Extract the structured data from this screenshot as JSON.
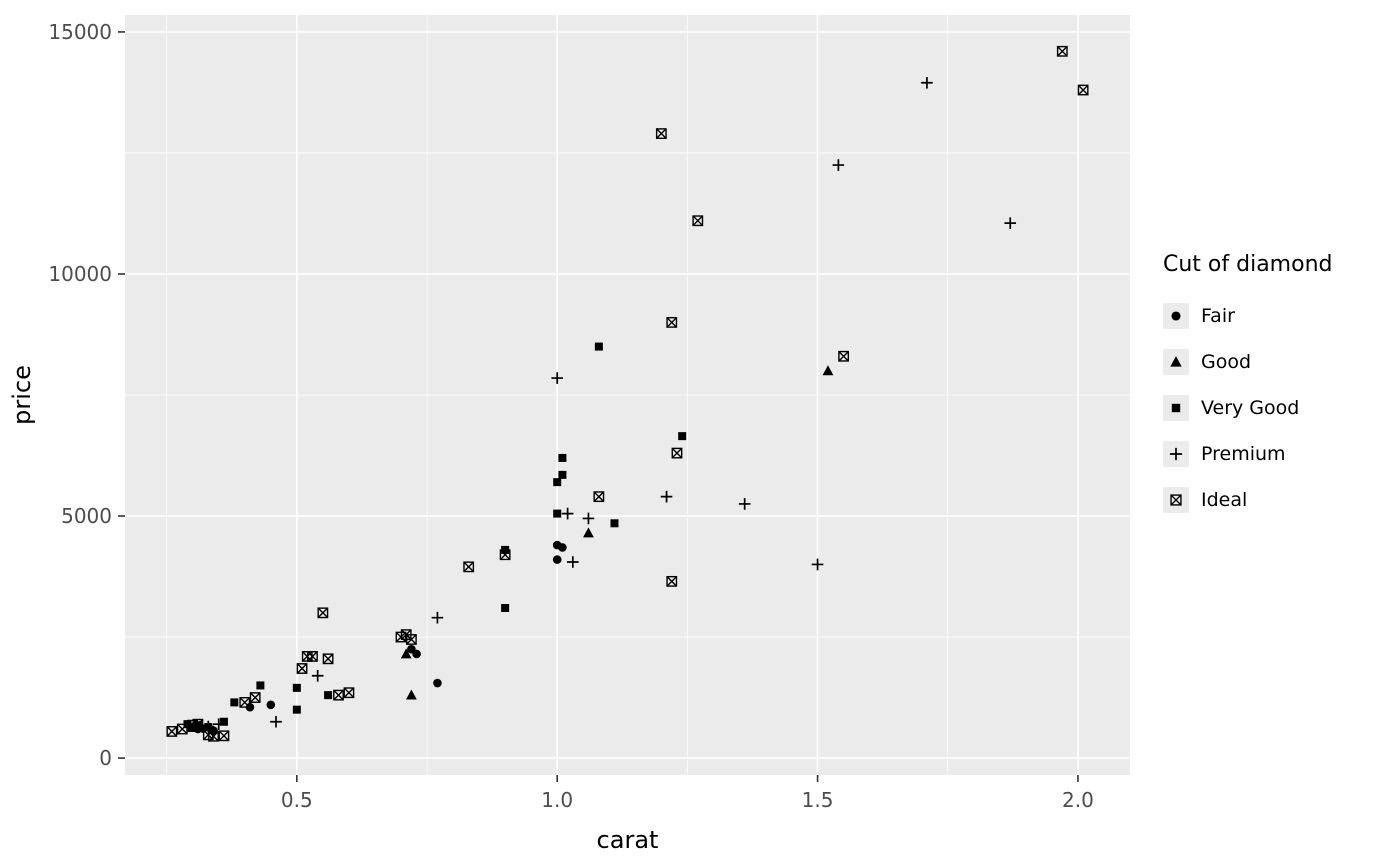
{
  "figure": {
    "background": "#FFFFFF",
    "panel_background": "#EBEBEB",
    "grid_major_color": "#FFFFFF",
    "grid_minor_color": "#FFFFFF",
    "tick_color": "#333333",
    "tick_label_color": "#4D4D4D",
    "axis_title_color": "#000000",
    "point_color": "#000000",
    "legend_key_background": "#EBEBEB"
  },
  "chart_data": {
    "type": "scatter",
    "title": "",
    "xlabel": "carat",
    "ylabel": "price",
    "xlim": [
      0.17,
      2.1
    ],
    "ylim": [
      -350,
      15350
    ],
    "x_ticks": [
      0.5,
      1.0,
      1.5,
      2.0
    ],
    "x_tick_labels": [
      "0.5",
      "1.0",
      "1.5",
      "2.0"
    ],
    "y_ticks": [
      0,
      5000,
      10000,
      15000
    ],
    "y_tick_labels": [
      "0",
      "5000",
      "10000",
      "15000"
    ],
    "x_minor_ticks": [
      0.25,
      0.75,
      1.25,
      1.75
    ],
    "y_minor_ticks": [
      2500,
      7500,
      12500
    ],
    "grid": true,
    "legend_title": "Cut of diamond",
    "legend_position": "right",
    "series": [
      {
        "name": "Fair",
        "shape": "circle",
        "points": [
          [
            0.3,
            640
          ],
          [
            0.31,
            600
          ],
          [
            0.32,
            610
          ],
          [
            0.34,
            565
          ],
          [
            0.41,
            1050
          ],
          [
            0.45,
            1100
          ],
          [
            0.72,
            2250
          ],
          [
            0.73,
            2150
          ],
          [
            0.77,
            1550
          ],
          [
            1.0,
            4400
          ],
          [
            1.01,
            4350
          ],
          [
            1.0,
            4100
          ]
        ]
      },
      {
        "name": "Good",
        "shape": "triangle",
        "points": [
          [
            0.3,
            630
          ],
          [
            0.71,
            2150
          ],
          [
            0.72,
            1300
          ],
          [
            1.06,
            4650
          ],
          [
            1.52,
            8000
          ]
        ]
      },
      {
        "name": "Very Good",
        "shape": "square",
        "points": [
          [
            0.29,
            700
          ],
          [
            0.31,
            680
          ],
          [
            0.33,
            640
          ],
          [
            0.36,
            750
          ],
          [
            0.38,
            1150
          ],
          [
            0.43,
            1500
          ],
          [
            0.5,
            1000
          ],
          [
            0.5,
            1450
          ],
          [
            0.56,
            1300
          ],
          [
            0.9,
            3100
          ],
          [
            0.9,
            4300
          ],
          [
            1.0,
            5050
          ],
          [
            1.0,
            5700
          ],
          [
            1.01,
            5850
          ],
          [
            1.01,
            6200
          ],
          [
            1.08,
            8500
          ],
          [
            1.11,
            4850
          ],
          [
            1.24,
            6650
          ]
        ]
      },
      {
        "name": "Premium",
        "shape": "plus",
        "points": [
          [
            0.33,
            650
          ],
          [
            0.35,
            700
          ],
          [
            0.46,
            750
          ],
          [
            0.54,
            1700
          ],
          [
            0.77,
            2900
          ],
          [
            1.0,
            7850
          ],
          [
            1.02,
            5050
          ],
          [
            1.03,
            4050
          ],
          [
            1.06,
            4950
          ],
          [
            1.21,
            5400
          ],
          [
            1.36,
            5250
          ],
          [
            1.5,
            4000
          ],
          [
            1.54,
            12250
          ],
          [
            1.71,
            13950
          ],
          [
            1.87,
            11050
          ]
        ]
      },
      {
        "name": "Ideal",
        "shape": "square-cross",
        "points": [
          [
            0.26,
            550
          ],
          [
            0.28,
            600
          ],
          [
            0.3,
            680
          ],
          [
            0.31,
            700
          ],
          [
            0.33,
            480
          ],
          [
            0.34,
            450
          ],
          [
            0.36,
            460
          ],
          [
            0.4,
            1150
          ],
          [
            0.42,
            1250
          ],
          [
            0.51,
            1850
          ],
          [
            0.52,
            2100
          ],
          [
            0.53,
            2100
          ],
          [
            0.55,
            3000
          ],
          [
            0.56,
            2050
          ],
          [
            0.58,
            1300
          ],
          [
            0.6,
            1350
          ],
          [
            0.7,
            2500
          ],
          [
            0.71,
            2550
          ],
          [
            0.72,
            2450
          ],
          [
            0.83,
            3950
          ],
          [
            0.9,
            4200
          ],
          [
            1.08,
            5400
          ],
          [
            1.2,
            12900
          ],
          [
            1.22,
            9000
          ],
          [
            1.22,
            3650
          ],
          [
            1.23,
            6300
          ],
          [
            1.27,
            11100
          ],
          [
            1.55,
            8300
          ],
          [
            1.97,
            14600
          ],
          [
            2.01,
            13800
          ]
        ]
      }
    ]
  }
}
